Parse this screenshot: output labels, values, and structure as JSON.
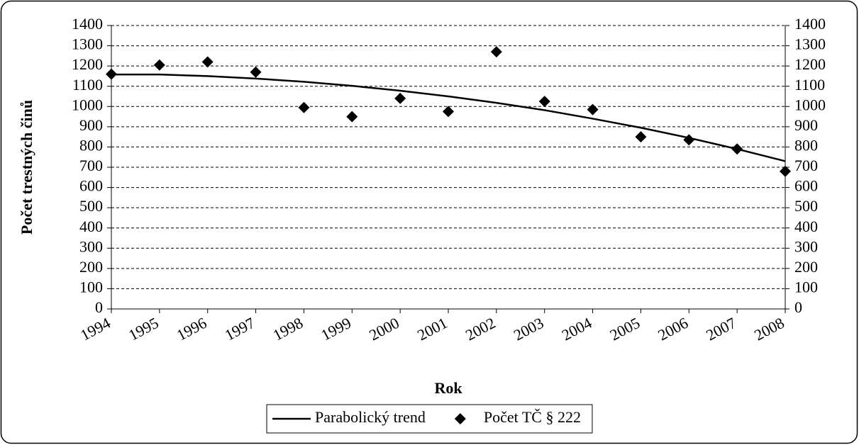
{
  "chart_data": {
    "type": "line",
    "x_label": "Rok",
    "y_label": "Počet trestných činů",
    "categories": [
      "1994",
      "1995",
      "1996",
      "1997",
      "1998",
      "1999",
      "2000",
      "2001",
      "2002",
      "2003",
      "2004",
      "2005",
      "2006",
      "2007",
      "2008"
    ],
    "series": [
      {
        "name": "Parabolický trend",
        "type": "line",
        "color": "#000000",
        "values": [
          1158,
          1158,
          1150,
          1138,
          1122,
          1102,
          1078,
          1050,
          1018,
          982,
          940,
          895,
          845,
          790,
          730
        ]
      },
      {
        "name": "Počet TČ § 222",
        "type": "scatter",
        "marker": "diamond",
        "color": "#000000",
        "values": [
          1160,
          1205,
          1220,
          1170,
          995,
          950,
          1040,
          975,
          1270,
          1025,
          985,
          850,
          835,
          790,
          680
        ]
      }
    ],
    "ylim": [
      0,
      1400
    ],
    "yticks": [
      0,
      100,
      200,
      300,
      400,
      500,
      600,
      700,
      800,
      900,
      1000,
      1100,
      1200,
      1300,
      1400
    ],
    "y2lim": [
      0,
      1400
    ],
    "y2ticks": [
      0,
      100,
      200,
      300,
      400,
      500,
      600,
      700,
      800,
      900,
      1000,
      1100,
      1200,
      1300,
      1400
    ],
    "grid": true,
    "legend": "bottom"
  }
}
